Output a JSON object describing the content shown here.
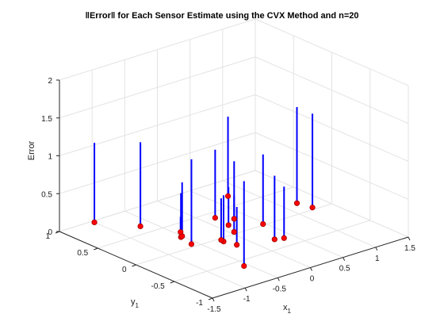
{
  "chart_data": {
    "type": "stem3",
    "title": "‖Error‖ for Each Sensor Estimate using the CVX Method and n=20",
    "xlabel_base": "x",
    "xlabel_sub": "1",
    "ylabel_base": "y",
    "ylabel_sub": "1",
    "zlabel": "Error",
    "xlim": [
      -1.5,
      1.5
    ],
    "ylim": [
      -1,
      1
    ],
    "zlim": [
      0,
      2
    ],
    "xticks": [
      "-1.5",
      "-1",
      "-0.5",
      "0",
      "0.5",
      "1",
      "1.5"
    ],
    "yticks": [
      "-1",
      "-0.5",
      "0",
      "0.5",
      "1"
    ],
    "zticks": [
      "0",
      "0.5",
      "1",
      "1.5",
      "2"
    ],
    "grid": true,
    "stem_color": "#0000ff",
    "marker_color": "#ff0000",
    "points": [
      {
        "x": -1.0,
        "y": 0.97,
        "z": 1.05
      },
      {
        "x": -0.67,
        "y": 0.65,
        "z": 1.11
      },
      {
        "x": -0.53,
        "y": 0.24,
        "z": 0.58
      },
      {
        "x": -0.58,
        "y": 0.06,
        "z": 1.12
      },
      {
        "x": -0.5,
        "y": 0.25,
        "z": 0.71
      },
      {
        "x": -0.43,
        "y": 0.33,
        "z": 0.2
      },
      {
        "x": -0.24,
        "y": -0.07,
        "z": 0.61
      },
      {
        "x": -0.19,
        "y": -0.2,
        "z": 0.5
      },
      {
        "x": -0.23,
        "y": -0.03,
        "z": 0.55
      },
      {
        "x": -0.56,
        "y": -0.61,
        "z": 1.12
      },
      {
        "x": 0.05,
        "y": 0.04,
        "z": 0.48
      },
      {
        "x": 0.17,
        "y": 0.39,
        "z": 0.9
      },
      {
        "x": 0.14,
        "y": 0.19,
        "z": 0.5
      },
      {
        "x": 0.32,
        "y": 0.27,
        "z": 0.76
      },
      {
        "x": 0.26,
        "y": -0.31,
        "z": 0.84
      },
      {
        "x": 0.47,
        "y": 0.02,
        "z": 0.92
      },
      {
        "x": 0.37,
        "y": -0.34,
        "z": 0.68
      },
      {
        "x": 0.73,
        "y": 0.7,
        "z": 1.05
      },
      {
        "x": 1.2,
        "y": 0.2,
        "z": 1.27
      },
      {
        "x": 1.25,
        "y": 0.04,
        "z": 1.24
      }
    ]
  }
}
